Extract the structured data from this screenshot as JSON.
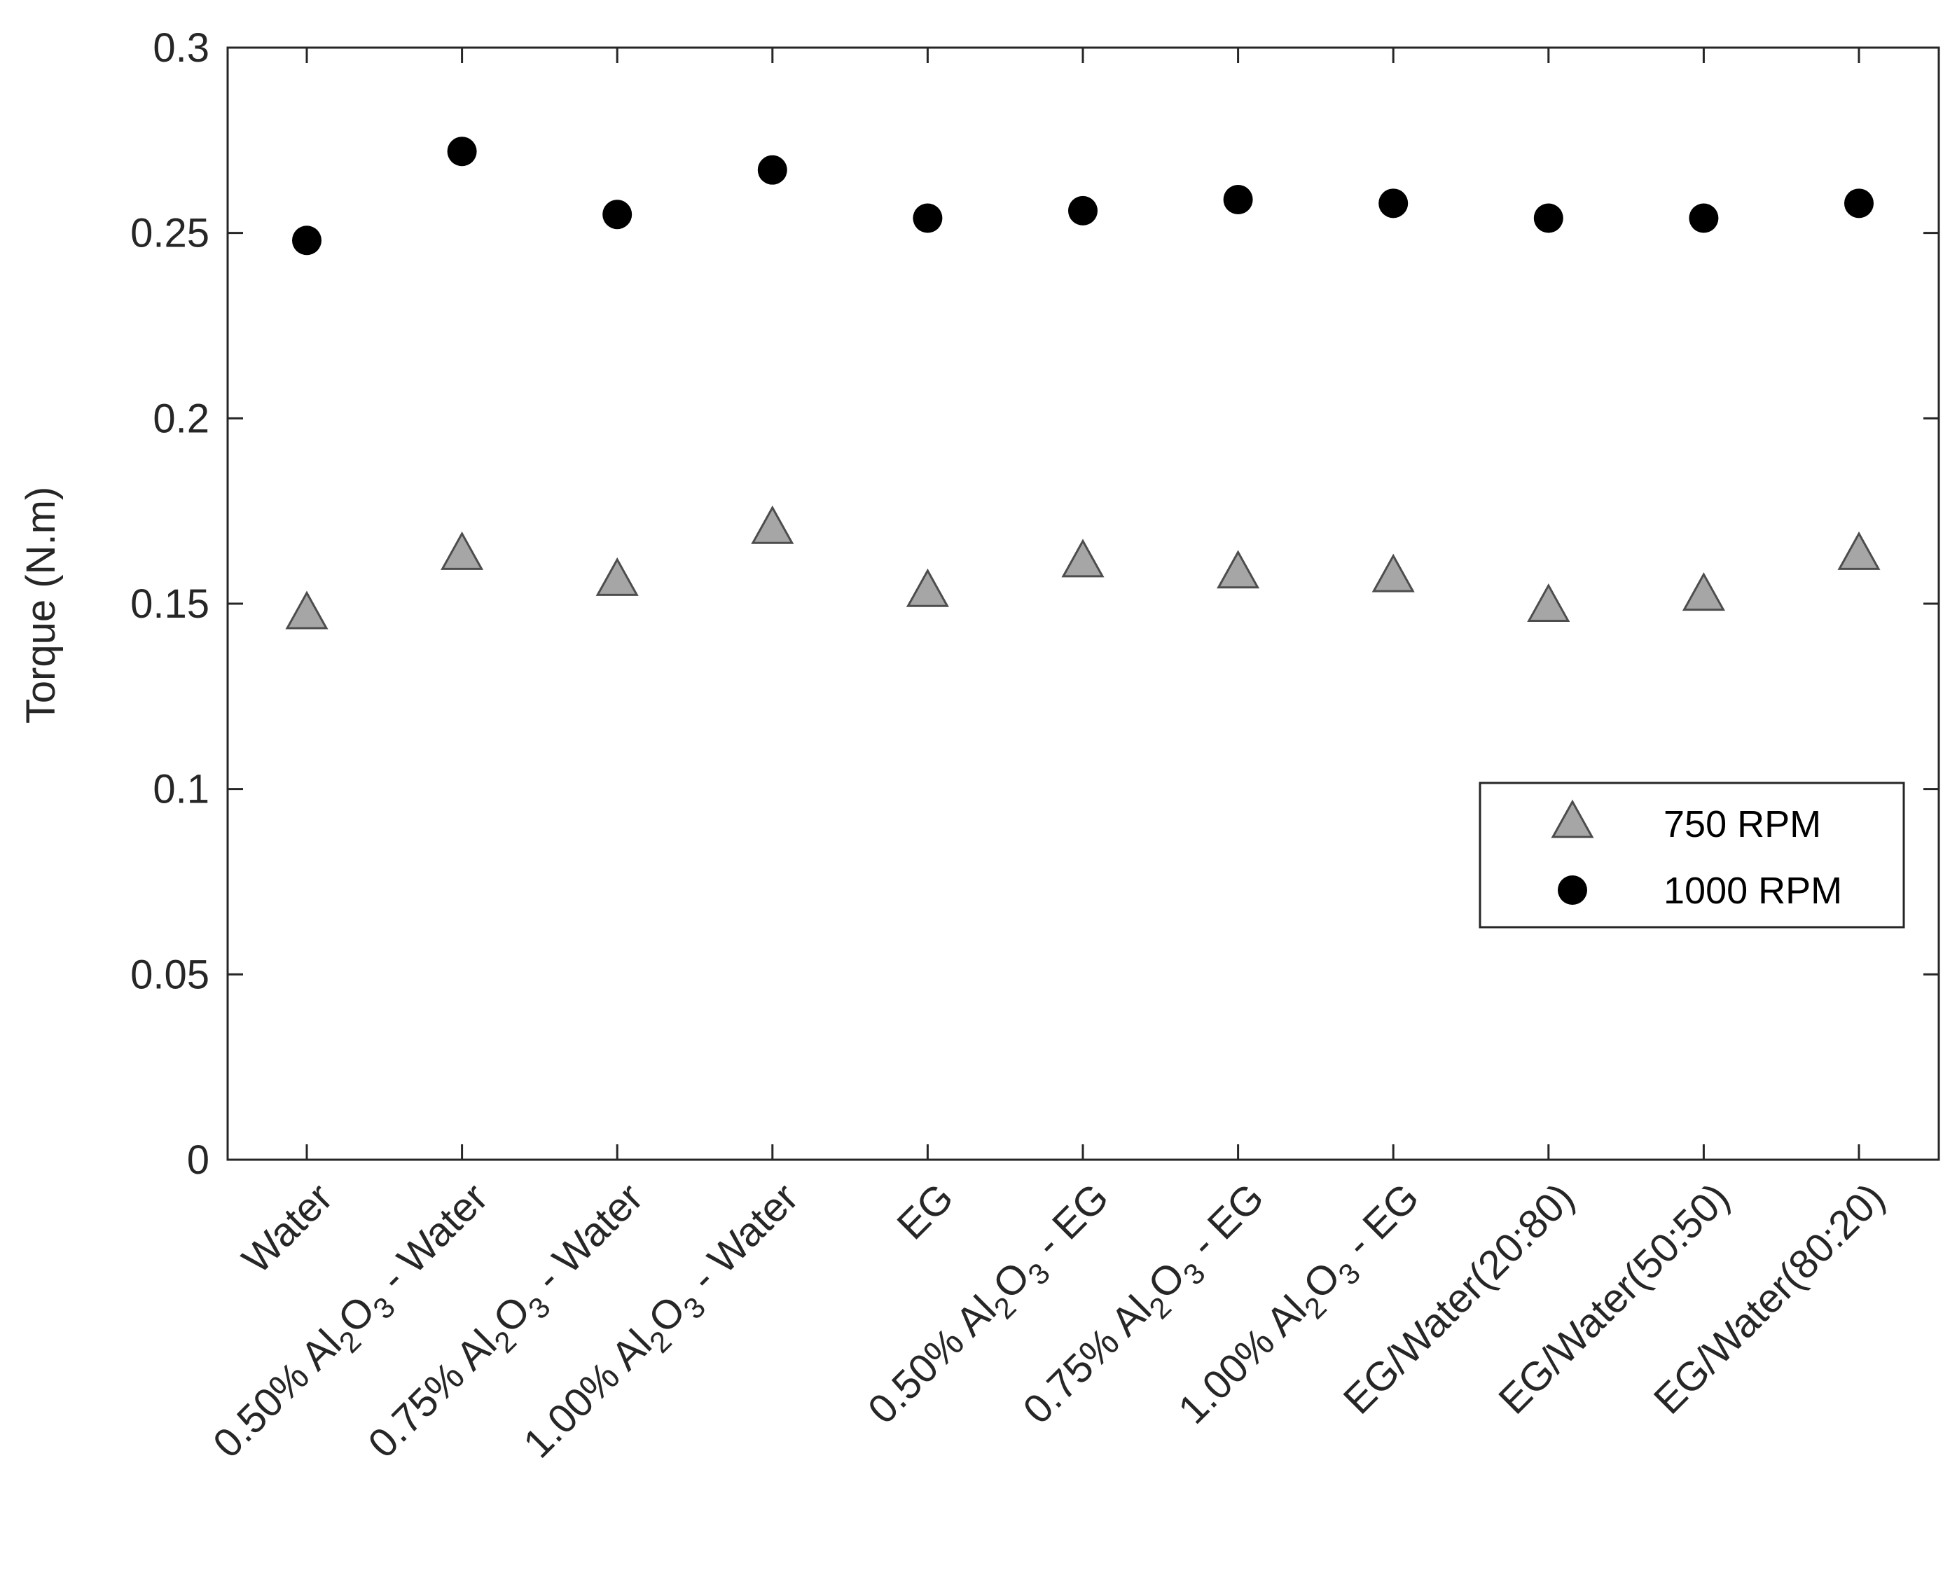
{
  "chart_data": {
    "type": "scatter",
    "title": "",
    "xlabel": "",
    "ylabel": "Torque (N.m)",
    "ylim": [
      0,
      0.3
    ],
    "yticks": [
      "0",
      "0.05",
      "0.1",
      "0.15",
      "0.2",
      "0.25",
      "0.3"
    ],
    "grid": false,
    "legend_position": "middle-right",
    "categories": [
      {
        "pre": "Water",
        "sub1": "",
        "mid": "",
        "sub2": "",
        "post": ""
      },
      {
        "pre": "0.50% Al",
        "sub1": "2",
        "mid": "O",
        "sub2": "3",
        "post": " - Water"
      },
      {
        "pre": "0.75% Al",
        "sub1": "2",
        "mid": "O",
        "sub2": "3",
        "post": " - Water"
      },
      {
        "pre": "1.00% Al",
        "sub1": "2",
        "mid": "O",
        "sub2": "3",
        "post": " - Water"
      },
      {
        "pre": "EG",
        "sub1": "",
        "mid": "",
        "sub2": "",
        "post": ""
      },
      {
        "pre": "0.50% Al",
        "sub1": "2",
        "mid": "O",
        "sub2": "3",
        "post": " - EG"
      },
      {
        "pre": "0.75% Al",
        "sub1": "2",
        "mid": "O",
        "sub2": "3",
        "post": " - EG"
      },
      {
        "pre": "1.00% Al",
        "sub1": "2",
        "mid": "O",
        "sub2": "3",
        "post": " - EG"
      },
      {
        "pre": "EG/Water(20:80)",
        "sub1": "",
        "mid": "",
        "sub2": "",
        "post": ""
      },
      {
        "pre": "EG/Water(50:50)",
        "sub1": "",
        "mid": "",
        "sub2": "",
        "post": ""
      },
      {
        "pre": "EG/Water(80:20)",
        "sub1": "",
        "mid": "",
        "sub2": "",
        "post": ""
      }
    ],
    "series": [
      {
        "name": "750 RPM",
        "marker": "triangle",
        "color": "#a6a6a6",
        "values": [
          0.147,
          0.163,
          0.156,
          0.17,
          0.153,
          0.161,
          0.158,
          0.157,
          0.149,
          0.152,
          0.163
        ]
      },
      {
        "name": "1000 RPM",
        "marker": "circle",
        "color": "#000000",
        "values": [
          0.248,
          0.272,
          0.255,
          0.267,
          0.254,
          0.256,
          0.259,
          0.258,
          0.254,
          0.254,
          0.258
        ]
      }
    ]
  }
}
